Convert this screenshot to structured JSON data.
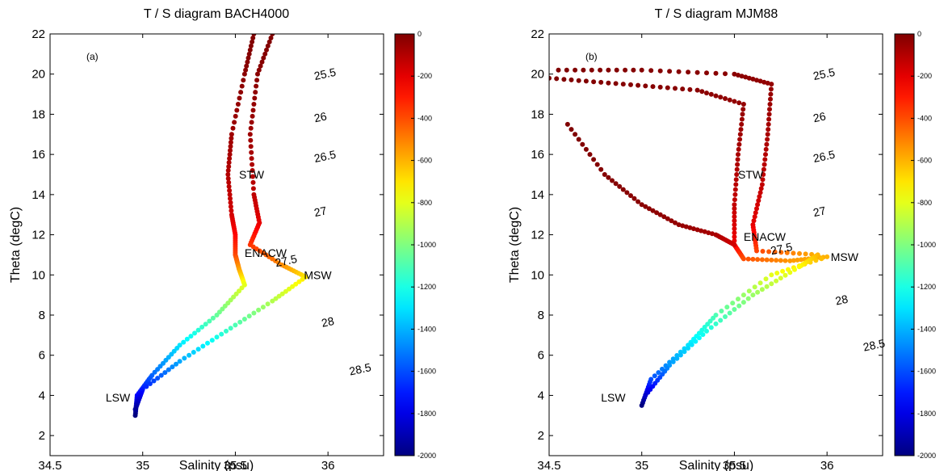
{
  "chart_data": [
    {
      "type": "scatter",
      "title": "T / S diagram BACH4000",
      "panel_label": "(a)",
      "xlabel": "Salinity (psu)",
      "ylabel": "Theta (degC)",
      "xlim": [
        34.5,
        36.3
      ],
      "ylim": [
        1,
        22
      ],
      "xticks": [
        34.5,
        35,
        35.5,
        36
      ],
      "yticks": [
        2,
        4,
        6,
        8,
        10,
        12,
        14,
        16,
        18,
        20,
        22
      ],
      "grid": false,
      "colorbar": {
        "range": [
          -2000,
          0
        ],
        "ticks": [
          0,
          -200,
          -400,
          -600,
          -800,
          -1000,
          -1200,
          -1400,
          -1600,
          -1800,
          -2000
        ],
        "colormap": "jet"
      },
      "density_contours": [
        {
          "label": "25.5",
          "label_at": [
            35.93,
            19.7
          ]
        },
        {
          "label": "26",
          "label_at": [
            35.93,
            17.6
          ]
        },
        {
          "label": "26.5",
          "label_at": [
            35.93,
            15.6
          ]
        },
        {
          "label": "27",
          "label_at": [
            35.93,
            12.9
          ]
        },
        {
          "label": "27.5",
          "label_at": [
            35.72,
            10.4
          ]
        },
        {
          "label": "28",
          "label_at": [
            35.97,
            7.4
          ]
        },
        {
          "label": "28.5",
          "label_at": [
            36.12,
            5.0
          ]
        }
      ],
      "water_masses": [
        {
          "label": "STW",
          "s": 35.52,
          "t": 14.8
        },
        {
          "label": "ENACW",
          "s": 35.55,
          "t": 10.9
        },
        {
          "label": "MSW",
          "s": 35.87,
          "t": 9.8
        },
        {
          "label": "LSW",
          "s": 34.8,
          "t": 3.7
        }
      ],
      "series": [
        {
          "profile": [
            [
              35.6,
              22.0,
              0
            ],
            [
              35.55,
              20.0,
              -20
            ],
            [
              35.48,
              17.0,
              -60
            ],
            [
              35.46,
              15.0,
              -100
            ],
            [
              35.48,
              13.0,
              -160
            ],
            [
              35.5,
              12.0,
              -250
            ],
            [
              35.5,
              11.0,
              -380
            ],
            [
              35.52,
              10.3,
              -560
            ],
            [
              35.55,
              9.5,
              -800
            ],
            [
              35.4,
              8.0,
              -1050
            ],
            [
              35.2,
              6.5,
              -1300
            ],
            [
              35.05,
              5.0,
              -1550
            ],
            [
              34.97,
              4.0,
              -1750
            ],
            [
              34.96,
              3.0,
              -2000
            ]
          ]
        },
        {
          "profile": [
            [
              35.7,
              22.0,
              0
            ],
            [
              35.62,
              20.0,
              -20
            ],
            [
              35.58,
              17.0,
              -60
            ],
            [
              35.6,
              14.0,
              -120
            ],
            [
              35.63,
              12.6,
              -200
            ],
            [
              35.58,
              11.5,
              -350
            ],
            [
              35.75,
              10.5,
              -520
            ],
            [
              35.88,
              9.9,
              -700
            ],
            [
              35.7,
              8.7,
              -900
            ],
            [
              35.45,
              7.2,
              -1150
            ],
            [
              35.2,
              5.7,
              -1420
            ],
            [
              35.0,
              4.3,
              -1700
            ],
            [
              34.96,
              3.3,
              -1950
            ]
          ]
        }
      ]
    },
    {
      "type": "scatter",
      "title": "T / S diagram MJM88",
      "panel_label": "(b)",
      "xlabel": "Salinity (psu)",
      "ylabel": "Theta (degC)",
      "xlim": [
        34.5,
        36.3
      ],
      "ylim": [
        1,
        22
      ],
      "xticks": [
        34.5,
        35,
        35.5,
        36
      ],
      "yticks": [
        2,
        4,
        6,
        8,
        10,
        12,
        14,
        16,
        18,
        20,
        22
      ],
      "grid": false,
      "colorbar": {
        "range": [
          -2000,
          0
        ],
        "ticks": [
          0,
          -200,
          -400,
          -600,
          -800,
          -1000,
          -1200,
          -1400,
          -1600,
          -1800,
          -2000
        ],
        "colormap": "jet"
      },
      "density_contours": [
        {
          "label": "25.5",
          "label_at": [
            35.93,
            19.7
          ]
        },
        {
          "label": "26",
          "label_at": [
            35.93,
            17.6
          ]
        },
        {
          "label": "26.5",
          "label_at": [
            35.93,
            15.6
          ]
        },
        {
          "label": "27",
          "label_at": [
            35.93,
            12.9
          ]
        },
        {
          "label": "27.5",
          "label_at": [
            35.7,
            11.0
          ]
        },
        {
          "label": "28",
          "label_at": [
            36.05,
            8.5
          ]
        },
        {
          "label": "28.5",
          "label_at": [
            36.2,
            6.2
          ]
        }
      ],
      "water_masses": [
        {
          "label": "STW",
          "s": 35.52,
          "t": 14.8
        },
        {
          "label": "ENACW",
          "s": 35.55,
          "t": 11.7
        },
        {
          "label": "MSW",
          "s": 36.02,
          "t": 10.7
        },
        {
          "label": "LSW",
          "s": 34.78,
          "t": 3.7
        }
      ],
      "series": [
        {
          "profile": [
            [
              34.5,
              19.8,
              0
            ],
            [
              34.9,
              19.5,
              -10
            ],
            [
              35.3,
              19.2,
              -20
            ],
            [
              35.55,
              18.5,
              -40
            ],
            [
              35.52,
              16.0,
              -80
            ],
            [
              35.5,
              13.5,
              -130
            ],
            [
              35.5,
              11.5,
              -220
            ],
            [
              35.55,
              10.8,
              -400
            ],
            [
              35.8,
              10.7,
              -550
            ],
            [
              36.0,
              10.9,
              -600
            ],
            [
              35.7,
              10.0,
              -800
            ],
            [
              35.4,
              8.0,
              -1100
            ],
            [
              35.25,
              6.5,
              -1300
            ],
            [
              35.05,
              4.8,
              -1600
            ],
            [
              35.0,
              3.5,
              -2000
            ]
          ]
        },
        {
          "profile": [
            [
              34.55,
              20.2,
              0
            ],
            [
              35.0,
              20.2,
              -10
            ],
            [
              35.5,
              20.0,
              -20
            ],
            [
              35.7,
              19.5,
              -40
            ],
            [
              35.68,
              17.0,
              -80
            ],
            [
              35.65,
              14.5,
              -130
            ],
            [
              35.6,
              12.5,
              -200
            ],
            [
              35.62,
              11.2,
              -380
            ],
            [
              35.95,
              11.0,
              -600
            ],
            [
              35.85,
              10.4,
              -750
            ],
            [
              35.6,
              9.0,
              -950
            ],
            [
              35.35,
              7.2,
              -1200
            ],
            [
              35.15,
              5.5,
              -1450
            ],
            [
              35.02,
              4.0,
              -1850
            ]
          ]
        },
        {
          "profile": [
            [
              34.6,
              17.5,
              0
            ],
            [
              34.8,
              15.0,
              -10
            ],
            [
              35.0,
              13.5,
              -20
            ],
            [
              35.2,
              12.5,
              -40
            ],
            [
              35.4,
              12.0,
              -80
            ],
            [
              35.5,
              11.5,
              -160
            ]
          ]
        }
      ]
    }
  ]
}
